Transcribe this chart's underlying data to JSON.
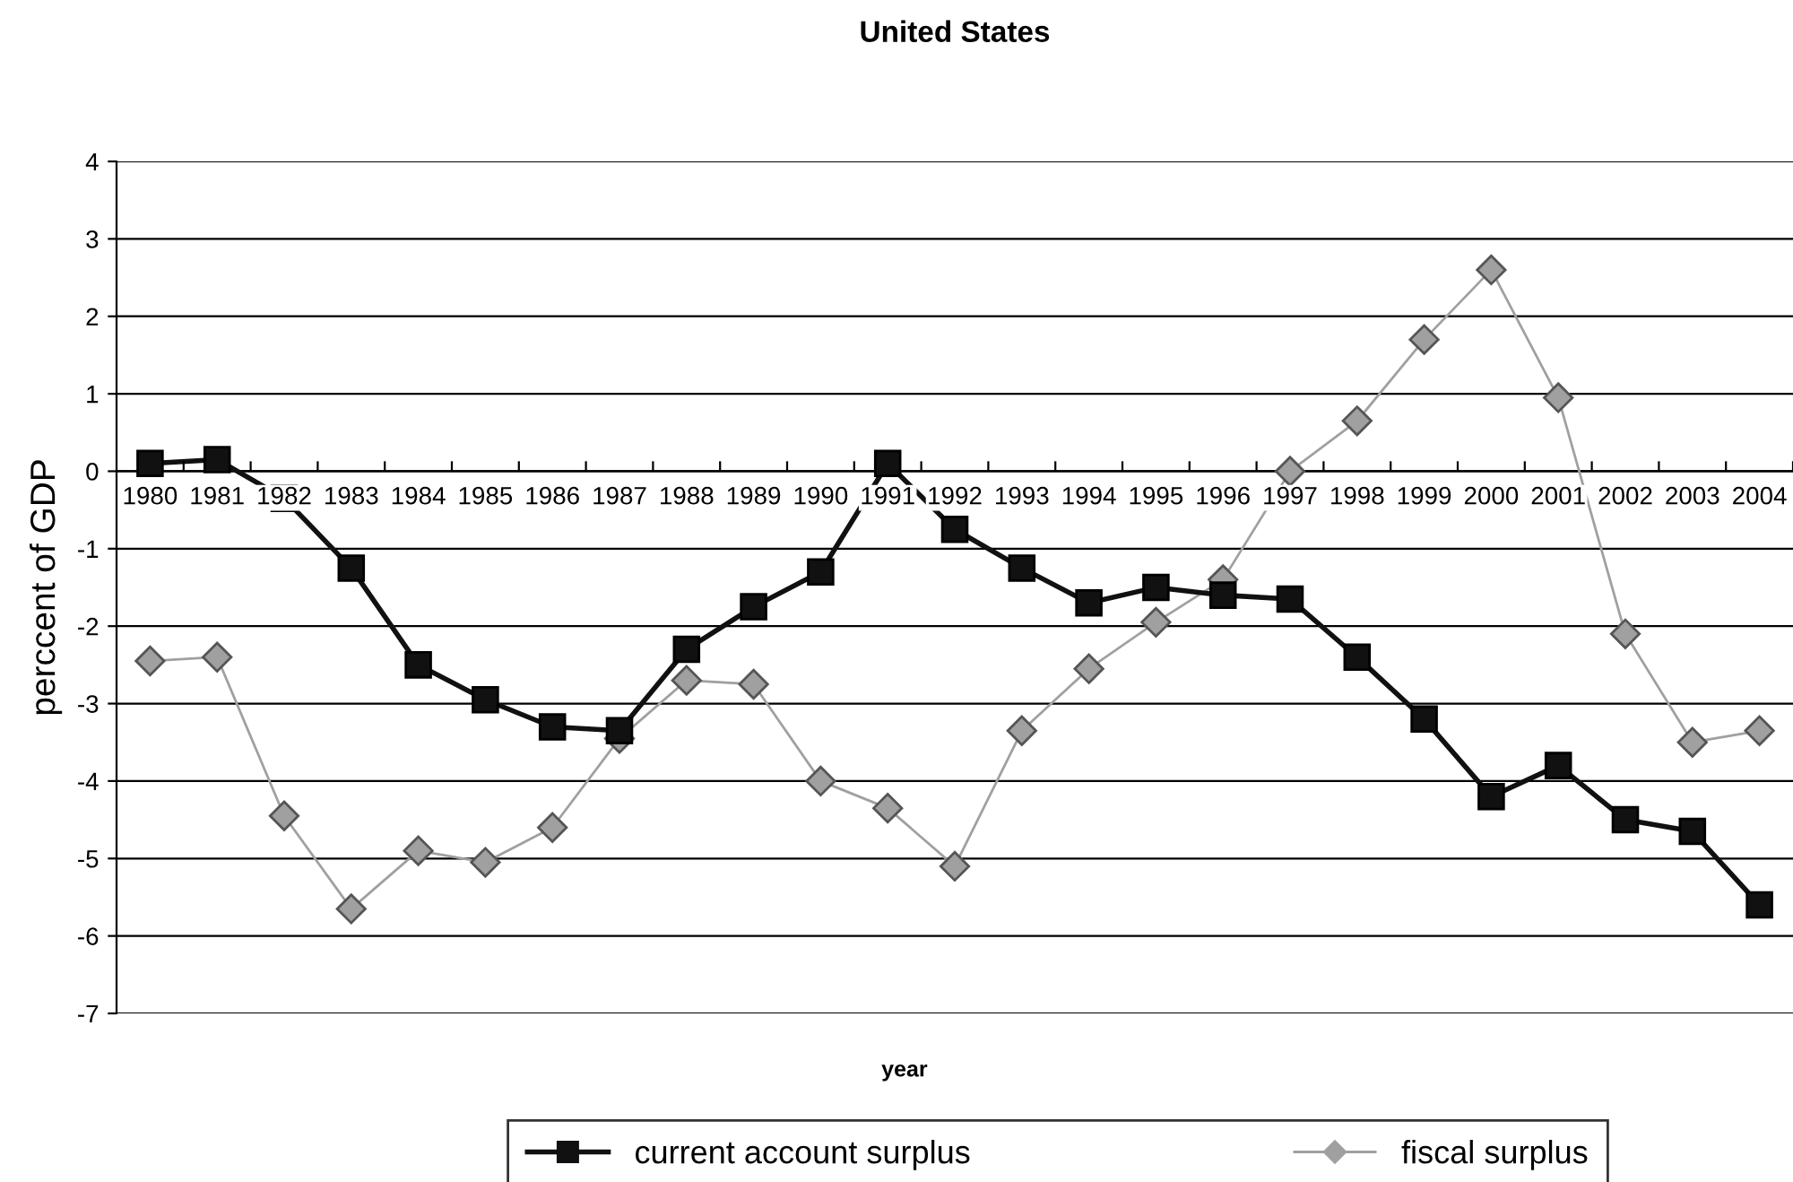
{
  "chart_data": {
    "type": "line",
    "title": "United States",
    "xlabel": "year",
    "ylabel": "perccent of GDP",
    "categories": [
      "1980",
      "1981",
      "1982",
      "1983",
      "1984",
      "1985",
      "1986",
      "1987",
      "1988",
      "1989",
      "1990",
      "1991",
      "1992",
      "1993",
      "1994",
      "1995",
      "1996",
      "1997",
      "1998",
      "1999",
      "2000",
      "2001",
      "2002",
      "2003",
      "2004"
    ],
    "series": [
      {
        "name": "current account surplus",
        "color": "#111111",
        "marker": "square",
        "values": [
          0.1,
          0.15,
          -0.35,
          -1.25,
          -2.5,
          -2.95,
          -3.3,
          -3.35,
          -2.3,
          -1.75,
          -1.3,
          0.1,
          -0.75,
          -1.25,
          -1.7,
          -1.5,
          -1.6,
          -1.65,
          -2.4,
          -3.2,
          -4.2,
          -3.8,
          -4.5,
          -4.65,
          -5.6
        ]
      },
      {
        "name": "fiscal surplus",
        "color": "#a0a0a0",
        "marker": "diamond",
        "values": [
          -2.45,
          -2.4,
          -4.45,
          -5.65,
          -4.9,
          -5.05,
          -4.6,
          -3.45,
          -2.7,
          -2.75,
          -4.0,
          -4.35,
          -5.1,
          -3.35,
          -2.55,
          -1.95,
          -1.4,
          0.0,
          0.65,
          1.7,
          2.6,
          0.95,
          -2.1,
          -3.5,
          -3.35
        ]
      }
    ],
    "ylim": [
      -7,
      4
    ],
    "yticks": [
      -7,
      -6,
      -5,
      -4,
      -3,
      -2,
      -1,
      0,
      1,
      2,
      3,
      4
    ],
    "grid": "y",
    "legend": "bottom",
    "line_style": "solid"
  }
}
